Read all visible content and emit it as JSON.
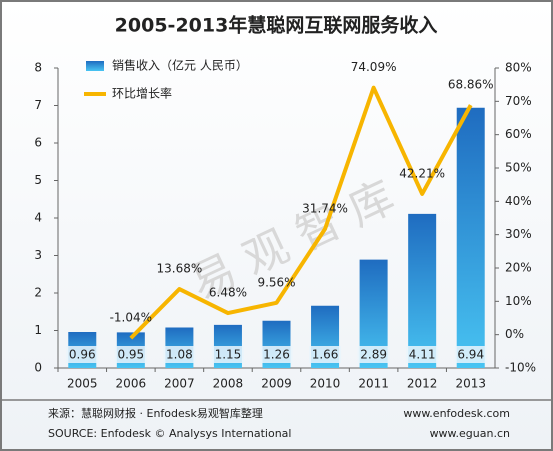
{
  "chart_data": {
    "type": "bar-line",
    "title": "2005-2013年慧聪网互联网服务收入",
    "watermark": "易观智库",
    "categories": [
      "2005",
      "2006",
      "2007",
      "2008",
      "2009",
      "2010",
      "2011",
      "2012",
      "2013"
    ],
    "series": [
      {
        "name": "销售收入（亿元 人民币）",
        "type": "bar",
        "color": "#2a86d4",
        "values": [
          0.96,
          0.95,
          1.08,
          1.15,
          1.26,
          1.66,
          2.89,
          4.11,
          6.94
        ]
      },
      {
        "name": "环比增长率",
        "type": "line",
        "axis": "y2",
        "color": "#f7b500",
        "values": [
          null,
          -1.04,
          13.68,
          6.48,
          9.56,
          31.74,
          74.09,
          42.21,
          68.86
        ],
        "value_labels": [
          null,
          "-1.04%",
          "13.68%",
          "6.48%",
          "9.56%",
          "31.74%",
          "74.09%",
          "42.21%",
          "68.86%"
        ]
      }
    ],
    "ylim": [
      0,
      8
    ],
    "yticks": [
      0,
      1,
      2,
      3,
      4,
      5,
      6,
      7,
      8
    ],
    "y2lim": [
      -10,
      80
    ],
    "y2ticks": [
      {
        "value": -10,
        "label": "-10%"
      },
      {
        "value": 0,
        "label": "0%"
      },
      {
        "value": 10,
        "label": "10%"
      },
      {
        "value": 20,
        "label": "20%"
      },
      {
        "value": 30,
        "label": "30%"
      },
      {
        "value": 40,
        "label": "40%"
      },
      {
        "value": 50,
        "label": "50%"
      },
      {
        "value": 60,
        "label": "60%"
      },
      {
        "value": 70,
        "label": "70%"
      },
      {
        "value": 80,
        "label": "80%"
      }
    ],
    "footer": {
      "source_cn": "来源：慧聪网财报 · Enfodesk易观智库整理",
      "site1": "www.enfodesk.com",
      "source_en": "SOURCE: Enfodesk © Analysys International",
      "site2": "www.eguan.cn"
    }
  }
}
